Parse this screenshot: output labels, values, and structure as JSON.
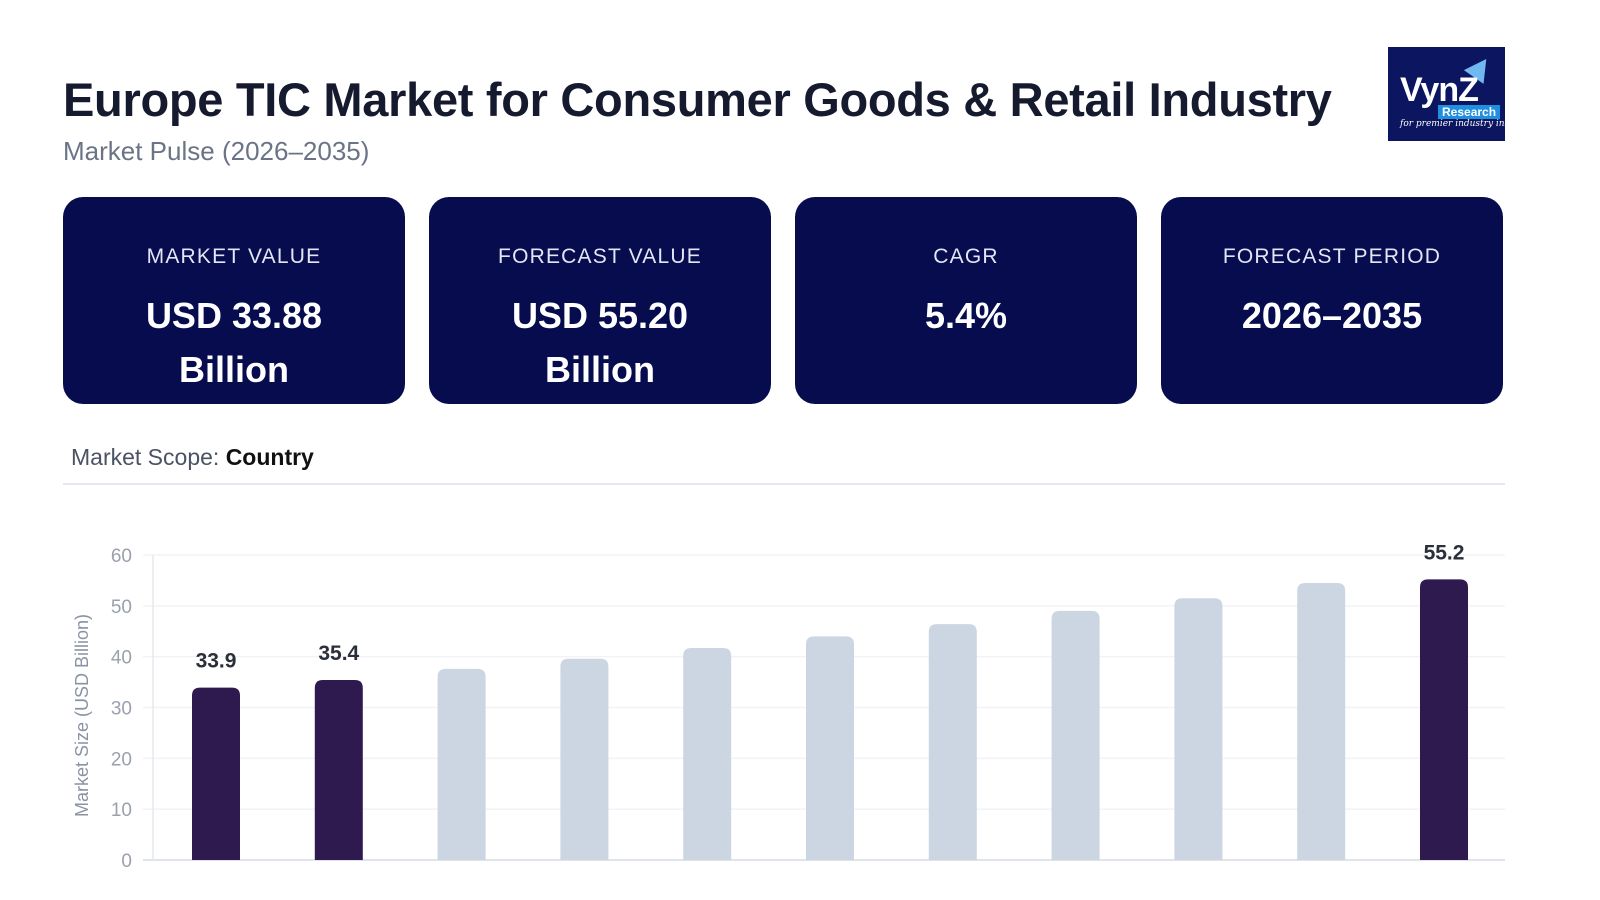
{
  "header": {
    "title": "Europe TIC Market for Consumer Goods & Retail Industry",
    "subtitle": "Market Pulse (2026–2035)"
  },
  "logo": {
    "text": "VynZ",
    "sub": "Research",
    "tagline": "for premier industry insights"
  },
  "cards": [
    {
      "label": "MARKET VALUE",
      "value": "USD 33.88",
      "value2": "Billion"
    },
    {
      "label": "FORECAST VALUE",
      "value": "USD 55.20",
      "value2": "Billion"
    },
    {
      "label": "CAGR",
      "value": "5.4%",
      "value2": ""
    },
    {
      "label": "FORECAST PERIOD",
      "value": "2026–2035",
      "value2": ""
    }
  ],
  "scope": {
    "label": "Market Scope:",
    "value": "Country"
  },
  "colors": {
    "card_bg": "#060c4d",
    "highlight_bar": "#2e1a4e",
    "muted_bar": "#ccd6e3"
  },
  "chart_data": {
    "type": "bar",
    "ylabel": "Market Size (USD Billion)",
    "ylim": [
      0,
      60
    ],
    "yticks": [
      0,
      10,
      20,
      30,
      40,
      50,
      60
    ],
    "grid": true,
    "values": [
      33.9,
      35.4,
      37.6,
      39.6,
      41.7,
      44.0,
      46.4,
      49.0,
      51.5,
      54.5,
      55.2
    ],
    "highlighted": [
      true,
      true,
      false,
      false,
      false,
      false,
      false,
      false,
      false,
      false,
      true
    ],
    "data_labels": [
      "33.9",
      "35.4",
      "",
      "",
      "",
      "",
      "",
      "",
      "",
      "",
      "55.2"
    ]
  }
}
